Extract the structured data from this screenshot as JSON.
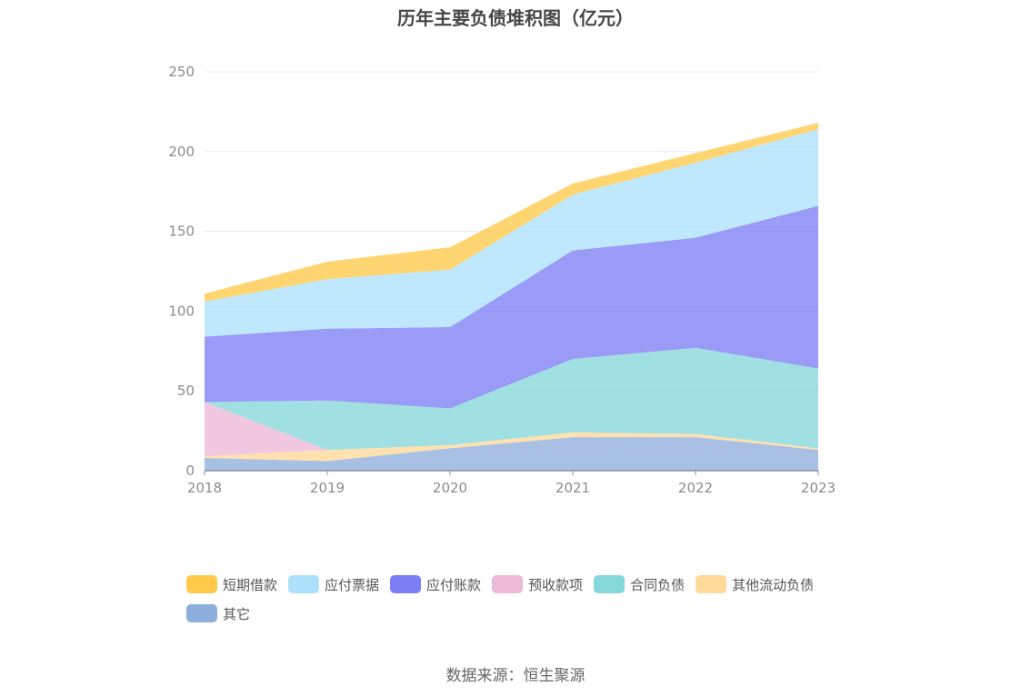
{
  "title": "历年主要负债堆积图（亿元）",
  "source": "数据来源：恒生聚源",
  "chart_data": {
    "type": "area",
    "stacked": true,
    "title": "历年主要负债堆积图（亿元）",
    "x": [
      "2018",
      "2019",
      "2020",
      "2021",
      "2022",
      "2023"
    ],
    "ylim": [
      0,
      250
    ],
    "yticks": [
      "0",
      "50",
      "100",
      "150",
      "200",
      "250"
    ],
    "grid": true,
    "legend_position": "bottom",
    "series": [
      {
        "name": "其它",
        "color": "#8eaedc",
        "values": [
          8,
          6,
          14,
          21,
          21,
          13
        ]
      },
      {
        "name": "其他流动负债",
        "color": "#ffd999",
        "values": [
          1,
          7,
          2,
          3,
          2,
          1
        ]
      },
      {
        "name": "预收款项",
        "color": "#eeb9d7",
        "values": [
          34,
          0,
          0,
          0,
          0,
          0
        ]
      },
      {
        "name": "合同负债",
        "color": "#86d7da",
        "values": [
          0,
          31,
          23,
          46,
          54,
          50
        ]
      },
      {
        "name": "应付账款",
        "color": "#7d7ff4",
        "values": [
          41,
          45,
          51,
          68,
          69,
          102
        ]
      },
      {
        "name": "应付票据",
        "color": "#ade1fb",
        "values": [
          22,
          31,
          36,
          35,
          47,
          48
        ]
      },
      {
        "name": "短期借款",
        "color": "#ffc94a",
        "values": [
          5,
          11,
          14,
          7,
          6,
          4
        ]
      }
    ],
    "legend_order": [
      "短期借款",
      "应付票据",
      "应付账款",
      "预收款项",
      "合同负债",
      "其他流动负债",
      "其它"
    ]
  }
}
